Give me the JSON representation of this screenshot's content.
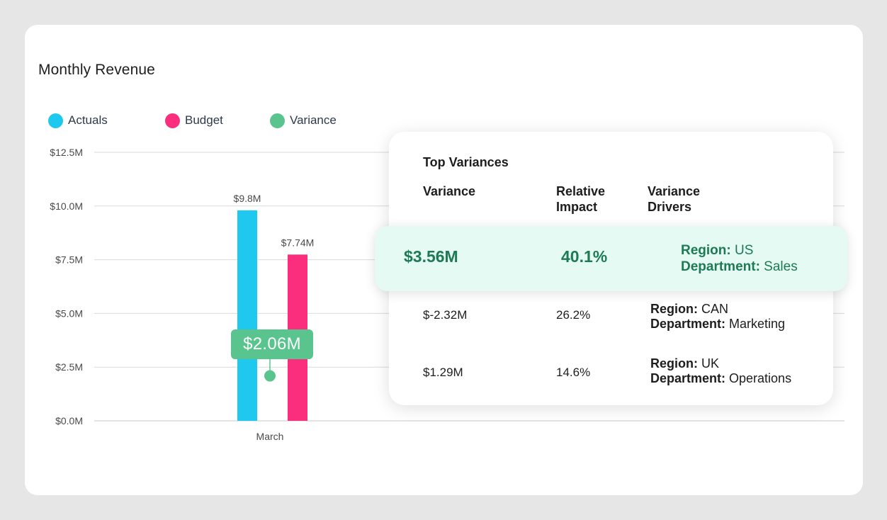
{
  "chart_data": {
    "type": "bar",
    "title": "Monthly Revenue",
    "categories": [
      "March"
    ],
    "series": [
      {
        "name": "Actuals",
        "values": [
          9.8
        ],
        "color": "#1ec8ee"
      },
      {
        "name": "Budget",
        "values": [
          7.74
        ],
        "color": "#fb2e7e"
      }
    ],
    "variance": {
      "name": "Variance",
      "value": 2.06,
      "label": "$2.06M",
      "color": "#5ac48e"
    },
    "bar_labels": [
      "$9.8M",
      "$7.74M"
    ],
    "yticks": [
      "$0.0M",
      "$2.5M",
      "$5.0M",
      "$7.5M",
      "$10.0M",
      "$12.5M"
    ],
    "ylim": [
      0,
      12.5
    ],
    "grid": true,
    "legend_position": "top-left"
  },
  "legend": [
    "Actuals",
    "Budget",
    "Variance"
  ],
  "panel": {
    "title": "Top Variances",
    "headers": [
      "Variance",
      "Relative\nImpact",
      "Variance\nDrivers"
    ],
    "rows": [
      {
        "variance": "$3.56M",
        "impact": "40.1%",
        "region_key": "Region:",
        "region": " US",
        "dept_key": "Department:",
        "dept": " Sales"
      },
      {
        "variance": "$-2.32M",
        "impact": "26.2%",
        "region_key": "Region:",
        "region": " CAN",
        "dept_key": "Department:",
        "dept": " Marketing"
      },
      {
        "variance": "$1.29M",
        "impact": "14.6%",
        "region_key": "Region:",
        "region": " UK",
        "dept_key": "Department:",
        "dept": " Operations"
      }
    ]
  }
}
